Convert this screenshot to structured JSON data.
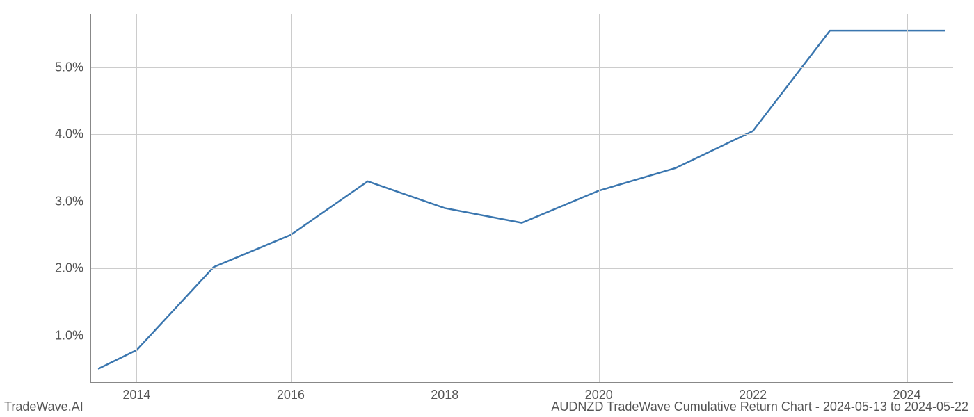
{
  "chart": {
    "type": "line",
    "x_values": [
      2013.5,
      2014,
      2015,
      2016,
      2017,
      2018,
      2019,
      2020,
      2021,
      2022,
      2023,
      2024,
      2024.5
    ],
    "y_values": [
      0.5,
      0.78,
      2.02,
      2.5,
      3.3,
      2.9,
      2.68,
      3.16,
      3.5,
      4.05,
      5.55,
      5.55,
      5.55
    ],
    "xlim": [
      2013.4,
      2024.6
    ],
    "ylim": [
      0.3,
      5.8
    ],
    "x_ticks": [
      2014,
      2016,
      2018,
      2020,
      2022,
      2024
    ],
    "x_tick_labels": [
      "2014",
      "2016",
      "2018",
      "2020",
      "2022",
      "2024"
    ],
    "y_ticks": [
      1.0,
      2.0,
      3.0,
      4.0,
      5.0
    ],
    "y_tick_labels": [
      "1.0%",
      "2.0%",
      "3.0%",
      "4.0%",
      "5.0%"
    ],
    "line_color": "#3a76af",
    "line_width": 2.5,
    "grid_color": "#cccccc",
    "background_color": "#ffffff",
    "tick_color": "#888888",
    "label_color": "#555555",
    "label_fontsize": 18
  },
  "footer": {
    "left": "TradeWave.AI",
    "right": "AUDNZD TradeWave Cumulative Return Chart - 2024-05-13 to 2024-05-22"
  }
}
